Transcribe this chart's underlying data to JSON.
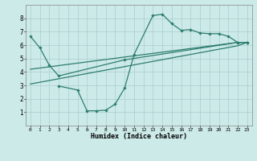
{
  "xlabel": "Humidex (Indice chaleur)",
  "xlim": [
    -0.5,
    23.5
  ],
  "ylim": [
    0,
    9
  ],
  "xticks": [
    0,
    1,
    2,
    3,
    4,
    5,
    6,
    7,
    8,
    9,
    10,
    11,
    12,
    13,
    14,
    15,
    16,
    17,
    18,
    19,
    20,
    21,
    22,
    23
  ],
  "yticks": [
    1,
    2,
    3,
    4,
    5,
    6,
    7,
    8
  ],
  "bg_color": "#cceae8",
  "grid_color": "#aacccc",
  "line_color": "#2e7d6e",
  "line1_x": [
    0,
    1,
    2,
    3,
    10,
    22,
    23
  ],
  "line1_y": [
    6.65,
    5.8,
    4.5,
    3.7,
    4.9,
    6.2,
    6.2
  ],
  "line2_x": [
    3,
    5,
    6,
    7,
    8,
    9,
    10,
    11,
    13,
    14,
    15,
    16,
    17,
    18,
    19,
    20,
    21,
    22,
    23
  ],
  "line2_y": [
    2.95,
    2.65,
    1.1,
    1.1,
    1.15,
    1.6,
    2.8,
    5.3,
    8.2,
    8.3,
    7.6,
    7.1,
    7.15,
    6.9,
    6.85,
    6.85,
    6.65,
    6.2,
    6.2
  ],
  "line3_x": [
    0,
    22,
    23
  ],
  "line3_y": [
    4.2,
    6.2,
    6.2
  ],
  "line4_x": [
    0,
    22,
    23
  ],
  "line4_y": [
    3.1,
    5.95,
    6.2
  ]
}
